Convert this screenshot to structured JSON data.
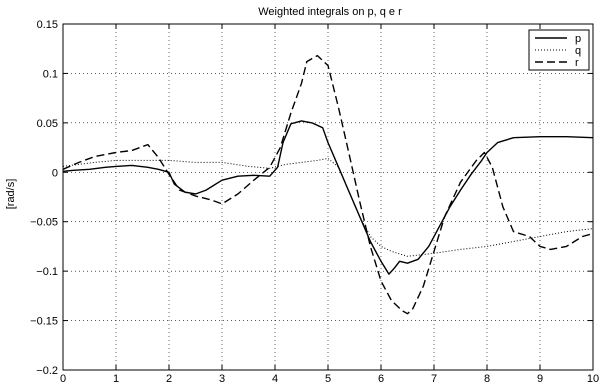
{
  "chart_data": {
    "type": "line",
    "title": "Weighted integrals on p, q e r",
    "xlabel": "",
    "ylabel": "[rad/s]",
    "xlim": [
      0,
      10
    ],
    "ylim": [
      -0.2,
      0.15
    ],
    "grid": true,
    "legend_position": "top-right",
    "x_ticks": [
      0,
      1,
      2,
      3,
      4,
      5,
      6,
      7,
      8,
      9,
      10
    ],
    "y_ticks": [
      -0.2,
      -0.15,
      -0.1,
      -0.05,
      0,
      0.05,
      0.1,
      0.15
    ],
    "x_tick_labels": [
      "0",
      "1",
      "2",
      "3",
      "4",
      "5",
      "6",
      "7",
      "8",
      "9",
      "10"
    ],
    "y_tick_labels": [
      "−0.2",
      "−0.15",
      "−0.1",
      "−0.05",
      "0",
      "0.05",
      "0.1",
      "0.15"
    ],
    "series": [
      {
        "name": "p",
        "style": "solid",
        "color": "#000000",
        "x": [
          0,
          0.2,
          0.5,
          0.8,
          1.0,
          1.3,
          1.6,
          1.8,
          2.0,
          2.1,
          2.3,
          2.5,
          2.7,
          3.0,
          3.3,
          3.6,
          3.9,
          4.05,
          4.15,
          4.3,
          4.5,
          4.7,
          4.9,
          5.0,
          5.2,
          5.4,
          5.6,
          5.8,
          6.0,
          6.15,
          6.25,
          6.35,
          6.5,
          6.7,
          6.9,
          7.1,
          7.3,
          7.5,
          7.7,
          7.9,
          8.0,
          8.2,
          8.5,
          9.0,
          9.5,
          10.0
        ],
        "y": [
          0.001,
          0.002,
          0.003,
          0.005,
          0.006,
          0.007,
          0.005,
          0.003,
          0.0,
          -0.012,
          -0.02,
          -0.022,
          -0.018,
          -0.008,
          -0.004,
          -0.003,
          -0.004,
          0.005,
          0.03,
          0.049,
          0.052,
          0.05,
          0.045,
          0.03,
          0.005,
          -0.02,
          -0.045,
          -0.07,
          -0.09,
          -0.103,
          -0.097,
          -0.09,
          -0.092,
          -0.088,
          -0.075,
          -0.055,
          -0.035,
          -0.018,
          -0.002,
          0.012,
          0.02,
          0.03,
          0.035,
          0.036,
          0.036,
          0.035
        ]
      },
      {
        "name": "q",
        "style": "dotted",
        "color": "#000000",
        "x": [
          0,
          0.3,
          0.6,
          1.0,
          1.5,
          2.0,
          2.5,
          3.0,
          3.5,
          3.9,
          4.2,
          4.5,
          4.8,
          5.0,
          5.2,
          5.4,
          5.6,
          5.8,
          6.0,
          6.2,
          6.5,
          7.0,
          7.5,
          8.0,
          8.5,
          9.0,
          9.5,
          10.0
        ],
        "y": [
          0.006,
          0.008,
          0.01,
          0.012,
          0.012,
          0.012,
          0.01,
          0.01,
          0.006,
          0.004,
          0.008,
          0.01,
          0.012,
          0.014,
          0.005,
          -0.02,
          -0.045,
          -0.065,
          -0.075,
          -0.08,
          -0.085,
          -0.082,
          -0.078,
          -0.075,
          -0.07,
          -0.065,
          -0.06,
          -0.057
        ]
      },
      {
        "name": "r",
        "style": "dashed",
        "color": "#000000",
        "x": [
          0,
          0.3,
          0.6,
          1.0,
          1.3,
          1.6,
          1.8,
          2.0,
          2.2,
          2.5,
          2.8,
          3.0,
          3.3,
          3.6,
          3.9,
          4.1,
          4.3,
          4.5,
          4.6,
          4.8,
          5.0,
          5.2,
          5.4,
          5.6,
          5.8,
          6.0,
          6.2,
          6.4,
          6.5,
          6.6,
          6.8,
          7.0,
          7.2,
          7.5,
          7.8,
          7.95,
          8.1,
          8.3,
          8.5,
          8.8,
          9.0,
          9.2,
          9.5,
          9.8,
          10.0
        ],
        "y": [
          0.003,
          0.01,
          0.016,
          0.02,
          0.022,
          0.028,
          0.015,
          -0.002,
          -0.018,
          -0.024,
          -0.028,
          -0.032,
          -0.022,
          -0.008,
          0.005,
          0.025,
          0.06,
          0.09,
          0.112,
          0.118,
          0.108,
          0.065,
          0.018,
          -0.03,
          -0.075,
          -0.11,
          -0.13,
          -0.14,
          -0.143,
          -0.138,
          -0.115,
          -0.08,
          -0.045,
          -0.01,
          0.012,
          0.02,
          0.005,
          -0.035,
          -0.06,
          -0.065,
          -0.075,
          -0.078,
          -0.075,
          -0.065,
          -0.062
        ]
      }
    ]
  }
}
